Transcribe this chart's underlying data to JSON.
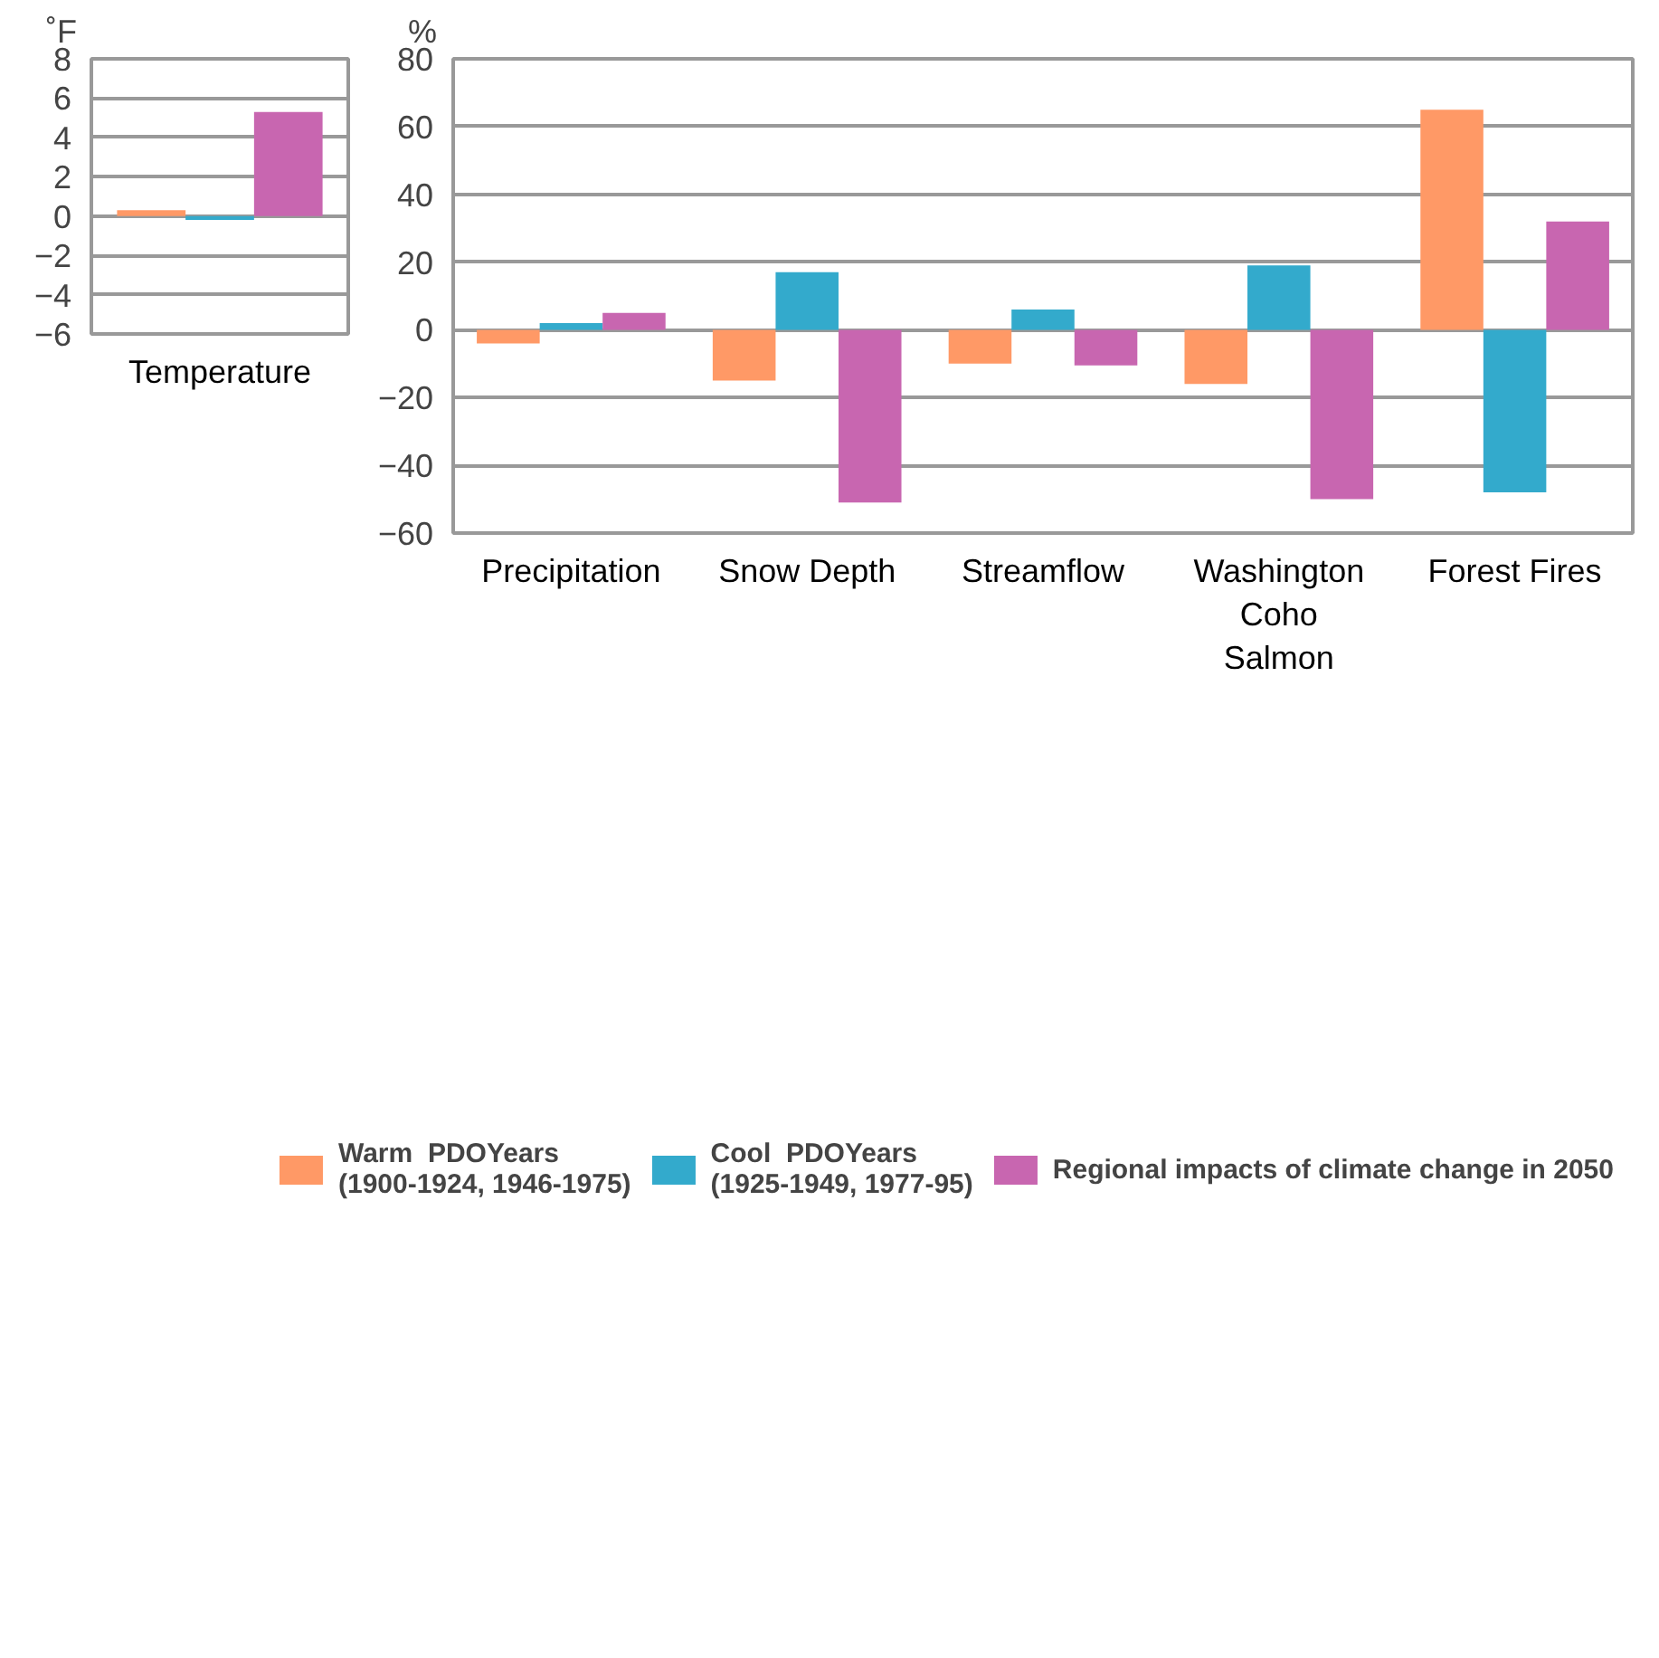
{
  "chart_data": [
    {
      "type": "bar",
      "ylabel": "˚F",
      "categories": [
        "Temperature"
      ],
      "ylim": [
        -6,
        8
      ],
      "yticks": [
        -6,
        -4,
        -2,
        0,
        2,
        4,
        6,
        8
      ],
      "grid": "y",
      "legend": false,
      "series": [
        {
          "color": "#ff9966",
          "values": [
            0.3
          ]
        },
        {
          "color": "#33aacc",
          "values": [
            -0.2
          ]
        },
        {
          "color": "#c866b0",
          "values": [
            5.3
          ]
        }
      ]
    },
    {
      "type": "bar",
      "ylabel": "%",
      "categories": [
        "Precipitation",
        "Snow Depth",
        "Streamflow",
        "Washington\nCoho\nSalmon",
        "Forest Fires"
      ],
      "ylim": [
        -60,
        80
      ],
      "yticks": [
        -60,
        -40,
        -20,
        0,
        20,
        40,
        60,
        80
      ],
      "grid": "y",
      "legend": "bottom",
      "series": [
        {
          "name": "Warm  PDOYears\n(1900-1924, 1946-1975)",
          "color": "#ff9966",
          "values": [
            -4,
            -15,
            -10,
            -16,
            65
          ]
        },
        {
          "name": "Cool  PDOYears\n(1925-1949, 1977-95)",
          "color": "#33aacc",
          "values": [
            2,
            17,
            6,
            19,
            -48
          ]
        },
        {
          "name": "Regional impacts of climate change in 2050",
          "color": "#c866b0",
          "values": [
            5,
            -51,
            -10.5,
            -50,
            32
          ]
        }
      ]
    }
  ]
}
